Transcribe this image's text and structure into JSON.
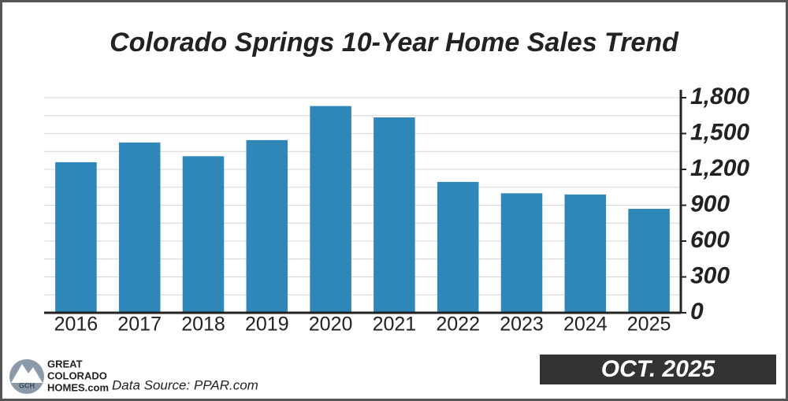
{
  "chart_data": {
    "type": "bar",
    "title": "Colorado Springs 10-Year Home Sales Trend",
    "categories": [
      "2016",
      "2017",
      "2018",
      "2019",
      "2020",
      "2021",
      "2022",
      "2023",
      "2024",
      "2025"
    ],
    "values": [
      1260,
      1425,
      1310,
      1445,
      1730,
      1635,
      1095,
      1000,
      990,
      870
    ],
    "color": "#2e86b9",
    "ylim": [
      0,
      1800
    ],
    "yticks": [
      0,
      300,
      600,
      900,
      {
        "value": 1200,
        "label": "1,200"
      },
      {
        "value": 1500,
        "label": "1,500"
      },
      {
        "value": 1800,
        "label": "1,800"
      }
    ],
    "minor_gridlines": [
      150,
      450,
      750,
      1050,
      1350,
      1650
    ],
    "grid": true,
    "y_axis_side": "right"
  },
  "footer": {
    "source": "Data Source: PPAR.com",
    "date_badge": "OCT. 2025",
    "logo": {
      "initials": "GCH",
      "line1": "GREAT",
      "line2": "COLORADO",
      "line3": "HOMES.com"
    }
  }
}
